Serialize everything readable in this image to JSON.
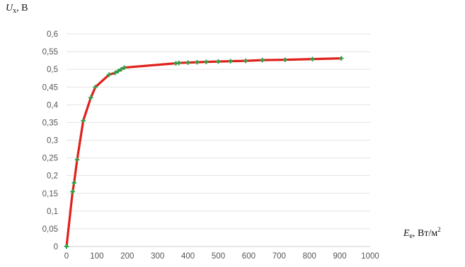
{
  "chart_data": {
    "type": "line",
    "ylabel": {
      "var": "U",
      "sub": "x",
      "unit": ", В"
    },
    "xlabel": {
      "var": "E",
      "sub": "e",
      "unit": ", Вт/м",
      "sup": "2"
    },
    "xlim": [
      0,
      1000
    ],
    "ylim": [
      0,
      0.6
    ],
    "xticks": [
      "0",
      "100",
      "200",
      "300",
      "400",
      "500",
      "600",
      "700",
      "800",
      "900",
      "1000"
    ],
    "yticks": [
      "0",
      "0,05",
      "0,1",
      "0,15",
      "0,2",
      "0,25",
      "0,3",
      "0,35",
      "0,4",
      "0,45",
      "0,5",
      "0,55",
      "0,6"
    ],
    "grid": "horizontal",
    "legend": "none",
    "series": [
      {
        "x": [
          0,
          20,
          25,
          35,
          55,
          80,
          95,
          140,
          160,
          170,
          180,
          190,
          360,
          370,
          400,
          430,
          460,
          500,
          540,
          590,
          645,
          720,
          810,
          905
        ],
        "y": [
          0,
          0.155,
          0.18,
          0.245,
          0.355,
          0.42,
          0.45,
          0.485,
          0.49,
          0.495,
          0.5,
          0.505,
          0.517,
          0.518,
          0.519,
          0.52,
          0.521,
          0.522,
          0.523,
          0.524,
          0.526,
          0.527,
          0.529,
          0.531
        ],
        "line_color": "#e0201a",
        "marker_color": "#2aa34a"
      }
    ]
  }
}
